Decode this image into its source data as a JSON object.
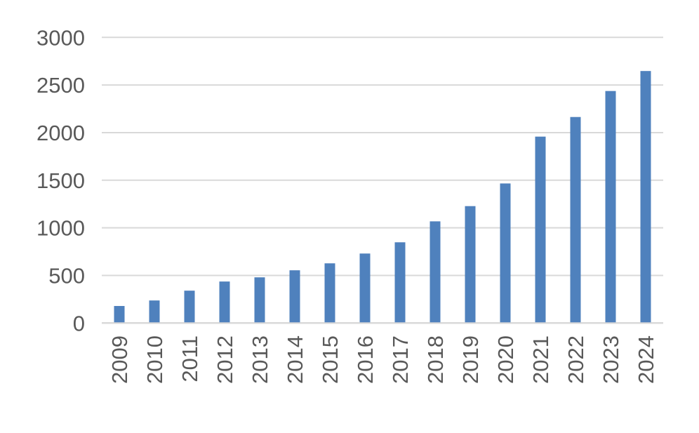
{
  "chart_data": {
    "type": "bar",
    "title": "",
    "xlabel": "",
    "ylabel": "",
    "categories": [
      "2009",
      "2010",
      "2011",
      "2012",
      "2013",
      "2014",
      "2015",
      "2016",
      "2017",
      "2018",
      "2019",
      "2020",
      "2021",
      "2022",
      "2023",
      "2024"
    ],
    "values": [
      179,
      237,
      340,
      436,
      480,
      554,
      627,
      730,
      848,
      1068,
      1228,
      1466,
      1958,
      2164,
      2437,
      2647
    ],
    "ylim": [
      0,
      3000
    ],
    "yticks": [
      "0",
      "500",
      "1000",
      "1500",
      "2000",
      "2500",
      "3000"
    ],
    "grid": true,
    "legend": "none",
    "bar_color": "#4f81bd",
    "grid_color": "#d9d9d9"
  }
}
